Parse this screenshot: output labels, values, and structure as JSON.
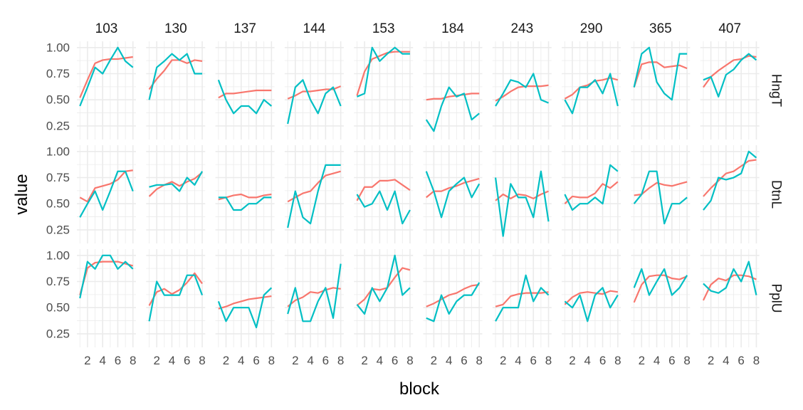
{
  "chart_data": {
    "type": "line",
    "xlabel": "block",
    "ylabel": "value",
    "x": [
      1,
      2,
      3,
      4,
      5,
      6,
      7,
      8
    ],
    "x_ticks": [
      2,
      4,
      6,
      8
    ],
    "xlim": [
      0.6,
      8.4
    ],
    "ylim": [
      0.12,
      1.06
    ],
    "y_ticks": [
      0.25,
      0.5,
      0.75,
      1.0
    ],
    "y_tick_labels": [
      "0.25",
      "0.50",
      "0.75",
      "1.00"
    ],
    "grid": true,
    "facet_columns": [
      "103",
      "130",
      "137",
      "144",
      "153",
      "184",
      "243",
      "290",
      "365",
      "407"
    ],
    "facet_rows": [
      "HngT",
      "DtnL",
      "PplU"
    ],
    "series_colors": [
      "#F8766D",
      "#00BFC4"
    ],
    "grid_color": "#EBEBEB",
    "panels": [
      {
        "row": "HngT",
        "col": "103",
        "red": [
          0.52,
          0.69,
          0.85,
          0.88,
          0.89,
          0.89,
          0.9,
          0.91
        ],
        "teal": [
          0.44,
          0.62,
          0.81,
          0.75,
          0.88,
          1.0,
          0.87,
          0.81
        ]
      },
      {
        "row": "HngT",
        "col": "130",
        "red": [
          0.6,
          0.7,
          0.78,
          0.88,
          0.88,
          0.85,
          0.88,
          0.87
        ],
        "teal": [
          0.5,
          0.81,
          0.87,
          0.94,
          0.88,
          0.94,
          0.75,
          0.75
        ]
      },
      {
        "row": "HngT",
        "col": "137",
        "red": [
          0.52,
          0.56,
          0.56,
          0.57,
          0.58,
          0.59,
          0.59,
          0.59
        ],
        "teal": [
          0.69,
          0.5,
          0.37,
          0.44,
          0.44,
          0.37,
          0.5,
          0.44
        ]
      },
      {
        "row": "HngT",
        "col": "144",
        "red": [
          0.51,
          0.54,
          0.58,
          0.58,
          0.59,
          0.6,
          0.6,
          0.63
        ],
        "teal": [
          0.27,
          0.62,
          0.69,
          0.5,
          0.37,
          0.56,
          0.62,
          0.44
        ]
      },
      {
        "row": "HngT",
        "col": "153",
        "red": [
          0.54,
          0.77,
          0.89,
          0.92,
          0.95,
          0.96,
          0.96,
          0.96
        ],
        "teal": [
          0.53,
          0.56,
          1.0,
          0.87,
          0.94,
          1.0,
          0.94,
          0.94
        ]
      },
      {
        "row": "HngT",
        "col": "184",
        "red": [
          0.5,
          0.51,
          0.51,
          0.53,
          0.54,
          0.55,
          0.56,
          0.56
        ],
        "teal": [
          0.31,
          0.2,
          0.44,
          0.62,
          0.53,
          0.56,
          0.31,
          0.37
        ]
      },
      {
        "row": "HngT",
        "col": "243",
        "red": [
          0.49,
          0.53,
          0.58,
          0.62,
          0.63,
          0.63,
          0.63,
          0.64
        ],
        "teal": [
          0.44,
          0.56,
          0.69,
          0.67,
          0.62,
          0.75,
          0.5,
          0.47
        ]
      },
      {
        "row": "HngT",
        "col": "290",
        "red": [
          0.51,
          0.55,
          0.62,
          0.64,
          0.68,
          0.69,
          0.71,
          0.69
        ],
        "teal": [
          0.5,
          0.37,
          0.62,
          0.62,
          0.69,
          0.56,
          0.75,
          0.44
        ]
      },
      {
        "row": "HngT",
        "col": "365",
        "red": [
          0.62,
          0.84,
          0.86,
          0.86,
          0.81,
          0.82,
          0.83,
          0.8
        ],
        "teal": [
          0.62,
          0.94,
          1.0,
          0.67,
          0.56,
          0.5,
          0.94,
          0.94
        ]
      },
      {
        "row": "HngT",
        "col": "407",
        "red": [
          0.62,
          0.72,
          0.78,
          0.83,
          0.88,
          0.89,
          0.92,
          0.91
        ],
        "teal": [
          0.69,
          0.72,
          0.53,
          0.74,
          0.79,
          0.88,
          0.94,
          0.88
        ]
      },
      {
        "row": "DtnL",
        "col": "103",
        "red": [
          0.56,
          0.52,
          0.65,
          0.67,
          0.69,
          0.73,
          0.81,
          0.82
        ],
        "teal": [
          0.37,
          0.5,
          0.62,
          0.44,
          0.62,
          0.81,
          0.81,
          0.62
        ]
      },
      {
        "row": "DtnL",
        "col": "130",
        "red": [
          0.57,
          0.64,
          0.68,
          0.71,
          0.67,
          0.71,
          0.74,
          0.8
        ],
        "teal": [
          0.66,
          0.68,
          0.68,
          0.69,
          0.62,
          0.75,
          0.68,
          0.81
        ]
      },
      {
        "row": "DtnL",
        "col": "137",
        "red": [
          0.54,
          0.56,
          0.58,
          0.59,
          0.56,
          0.56,
          0.58,
          0.59
        ],
        "teal": [
          0.56,
          0.56,
          0.44,
          0.44,
          0.5,
          0.5,
          0.56,
          0.56
        ]
      },
      {
        "row": "DtnL",
        "col": "144",
        "red": [
          0.52,
          0.56,
          0.6,
          0.62,
          0.7,
          0.77,
          0.79,
          0.81
        ],
        "teal": [
          0.27,
          0.62,
          0.37,
          0.31,
          0.62,
          0.87,
          0.87,
          0.87
        ]
      },
      {
        "row": "DtnL",
        "col": "153",
        "red": [
          0.53,
          0.66,
          0.66,
          0.72,
          0.72,
          0.73,
          0.68,
          0.63
        ],
        "teal": [
          0.59,
          0.47,
          0.5,
          0.62,
          0.44,
          0.62,
          0.31,
          0.44
        ]
      },
      {
        "row": "DtnL",
        "col": "184",
        "red": [
          0.56,
          0.62,
          0.62,
          0.65,
          0.67,
          0.7,
          0.72,
          0.74
        ],
        "teal": [
          0.81,
          0.62,
          0.37,
          0.62,
          0.69,
          0.75,
          0.56,
          0.69
        ]
      },
      {
        "row": "DtnL",
        "col": "243",
        "red": [
          0.53,
          0.59,
          0.55,
          0.59,
          0.58,
          0.55,
          0.59,
          0.62
        ],
        "teal": [
          0.75,
          0.19,
          0.69,
          0.56,
          0.56,
          0.37,
          0.81,
          0.33
        ]
      },
      {
        "row": "DtnL",
        "col": "290",
        "red": [
          0.5,
          0.57,
          0.56,
          0.56,
          0.6,
          0.69,
          0.65,
          0.71
        ],
        "teal": [
          0.59,
          0.44,
          0.5,
          0.5,
          0.56,
          0.5,
          0.87,
          0.81
        ]
      },
      {
        "row": "DtnL",
        "col": "365",
        "red": [
          0.58,
          0.59,
          0.65,
          0.7,
          0.68,
          0.67,
          0.69,
          0.71
        ],
        "teal": [
          0.5,
          0.59,
          0.81,
          0.81,
          0.31,
          0.5,
          0.5,
          0.56
        ]
      },
      {
        "row": "DtnL",
        "col": "407",
        "red": [
          0.57,
          0.65,
          0.72,
          0.79,
          0.81,
          0.86,
          0.91,
          0.92
        ],
        "teal": [
          0.44,
          0.53,
          0.75,
          0.73,
          0.75,
          0.79,
          1.0,
          0.94
        ]
      },
      {
        "row": "PplU",
        "col": "103",
        "red": [
          0.62,
          0.88,
          0.93,
          0.94,
          0.94,
          0.94,
          0.92,
          0.9
        ],
        "teal": [
          0.59,
          0.94,
          0.87,
          1.0,
          1.0,
          0.87,
          0.94,
          0.87
        ]
      },
      {
        "row": "PplU",
        "col": "130",
        "red": [
          0.52,
          0.65,
          0.68,
          0.63,
          0.67,
          0.74,
          0.83,
          0.73
        ],
        "teal": [
          0.37,
          0.75,
          0.62,
          0.62,
          0.62,
          0.81,
          0.81,
          0.62
        ]
      },
      {
        "row": "PplU",
        "col": "137",
        "red": [
          0.49,
          0.51,
          0.54,
          0.56,
          0.58,
          0.59,
          0.6,
          0.61
        ],
        "teal": [
          0.56,
          0.37,
          0.5,
          0.5,
          0.5,
          0.31,
          0.62,
          0.69
        ]
      },
      {
        "row": "PplU",
        "col": "144",
        "red": [
          0.51,
          0.57,
          0.6,
          0.65,
          0.64,
          0.67,
          0.69,
          0.68
        ],
        "teal": [
          0.44,
          0.69,
          0.37,
          0.37,
          0.56,
          0.69,
          0.4,
          0.92
        ]
      },
      {
        "row": "PplU",
        "col": "153",
        "red": [
          0.52,
          0.58,
          0.68,
          0.67,
          0.69,
          0.79,
          0.88,
          0.86
        ],
        "teal": [
          0.53,
          0.44,
          0.69,
          0.56,
          0.69,
          1.0,
          0.62,
          0.69
        ]
      },
      {
        "row": "PplU",
        "col": "184",
        "red": [
          0.51,
          0.54,
          0.58,
          0.62,
          0.64,
          0.68,
          0.71,
          0.72
        ],
        "teal": [
          0.4,
          0.37,
          0.62,
          0.44,
          0.56,
          0.62,
          0.62,
          0.74
        ]
      },
      {
        "row": "PplU",
        "col": "243",
        "red": [
          0.51,
          0.53,
          0.61,
          0.63,
          0.64,
          0.64,
          0.64,
          0.65
        ],
        "teal": [
          0.37,
          0.5,
          0.5,
          0.5,
          0.81,
          0.56,
          0.69,
          0.62
        ]
      },
      {
        "row": "PplU",
        "col": "290",
        "red": [
          0.53,
          0.6,
          0.64,
          0.65,
          0.64,
          0.63,
          0.66,
          0.65
        ],
        "teal": [
          0.56,
          0.5,
          0.62,
          0.37,
          0.62,
          0.69,
          0.5,
          0.62
        ]
      },
      {
        "row": "PplU",
        "col": "365",
        "red": [
          0.55,
          0.72,
          0.8,
          0.81,
          0.81,
          0.78,
          0.77,
          0.8
        ],
        "teal": [
          0.69,
          0.87,
          0.62,
          0.75,
          0.87,
          0.62,
          0.69,
          0.81
        ]
      },
      {
        "row": "PplU",
        "col": "407",
        "red": [
          0.57,
          0.72,
          0.78,
          0.76,
          0.81,
          0.81,
          0.8,
          0.77
        ],
        "teal": [
          0.73,
          0.66,
          0.64,
          0.69,
          0.87,
          0.75,
          0.94,
          0.62
        ]
      }
    ]
  }
}
